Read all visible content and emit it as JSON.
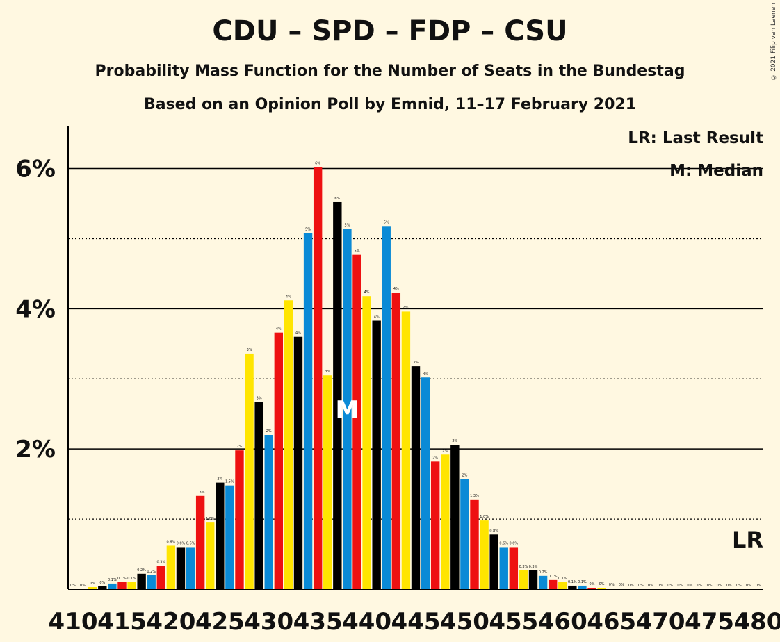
{
  "title": "CDU – SPD – FDP – CSU",
  "subtitle1": "Probability Mass Function for the Number of Seats in the Bundestag",
  "subtitle2": "Based on an Opinion Poll by Emnid, 11–17 February 2021",
  "copyright": "© 2021 Filip van Laenen",
  "legend": {
    "last_result": "LR: Last Result",
    "median": "M: Median"
  },
  "colors": {
    "blue": "#0a8ad6",
    "red": "#ee1111",
    "yellow": "#ffe500",
    "black": "#000000",
    "background": "#fff8e1"
  },
  "chart_data": {
    "type": "bar",
    "xlabel": "",
    "ylabel": "",
    "ylim": [
      0,
      6.6
    ],
    "yticks": [
      {
        "value": 2,
        "label": "2%"
      },
      {
        "value": 4,
        "label": "4%"
      },
      {
        "value": 6,
        "label": "6%"
      }
    ],
    "xticks": [
      410,
      415,
      420,
      425,
      430,
      435,
      440,
      445,
      450,
      455,
      460,
      465,
      470,
      475,
      480
    ],
    "median_seat": 438,
    "median_label": "M",
    "last_result_label": "LR",
    "color_cycle": [
      "blue",
      "red",
      "yellow",
      "black"
    ],
    "seats": [
      410,
      411,
      412,
      413,
      414,
      415,
      416,
      417,
      418,
      419,
      420,
      421,
      422,
      423,
      424,
      425,
      426,
      427,
      428,
      429,
      430,
      431,
      432,
      433,
      434,
      435,
      436,
      437,
      438,
      439,
      440,
      441,
      442,
      443,
      444,
      445,
      446,
      447,
      448,
      449,
      450,
      451,
      452,
      453,
      454,
      455,
      456,
      457,
      458,
      459,
      460,
      461,
      462,
      463,
      464,
      465,
      466,
      467,
      468,
      469,
      470,
      471,
      472,
      473,
      474,
      475,
      476,
      477,
      478,
      479,
      480
    ],
    "values": [
      0,
      0,
      0.03,
      0.04,
      0.08,
      0.1,
      0.1,
      0.22,
      0.2,
      0.33,
      0.62,
      0.6,
      0.6,
      1.33,
      0.95,
      1.52,
      1.48,
      1.98,
      3.36,
      2.67,
      2.2,
      3.66,
      4.12,
      3.6,
      5.08,
      6.02,
      3.05,
      5.52,
      5.14,
      4.77,
      4.18,
      3.83,
      5.18,
      4.23,
      3.96,
      3.18,
      3.02,
      1.82,
      1.92,
      2.06,
      1.57,
      1.28,
      0.98,
      0.78,
      0.6,
      0.6,
      0.27,
      0.27,
      0.19,
      0.13,
      0.1,
      0.05,
      0.05,
      0.02,
      0.02,
      0.01,
      0.01,
      0,
      0,
      0,
      0,
      0,
      0,
      0,
      0,
      0,
      0,
      0,
      0,
      0,
      0
    ],
    "labels": [
      "0%",
      "0%",
      "0%",
      "0%",
      "0.1%",
      "0.1%",
      "0.1%",
      "0.2%",
      "0.2%",
      "0.3%",
      "0.6%",
      "0.6%",
      "0.6%",
      "1.3%",
      "1.0%",
      "2%",
      "1.5%",
      "2%",
      "3%",
      "3%",
      "2%",
      "4%",
      "4%",
      "4%",
      "5%",
      "6%",
      "3%",
      "6%",
      "5%",
      "5%",
      "4%",
      "4%",
      "5%",
      "4%",
      "4%",
      "3%",
      "3%",
      "2%",
      "2%",
      "2%",
      "2%",
      "1.3%",
      "1.0%",
      "0.8%",
      "0.6%",
      "0.6%",
      "0.3%",
      "0.3%",
      "0.2%",
      "0.1%",
      "0.1%",
      "0.1%",
      "0.1%",
      "0%",
      "0%",
      "0%",
      "0%",
      "0%",
      "0%",
      "0%",
      "0%",
      "0%",
      "0%",
      "0%",
      "0%",
      "0%",
      "0%",
      "0%",
      "0%",
      "0%",
      "0%"
    ]
  }
}
